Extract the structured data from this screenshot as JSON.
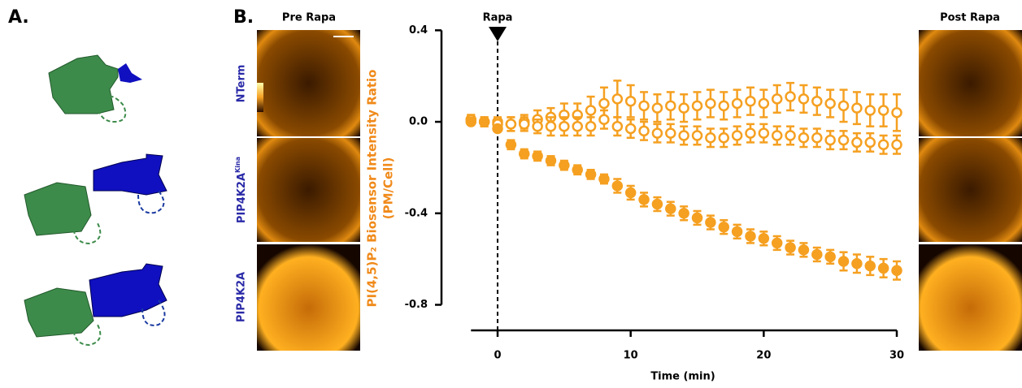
{
  "panels": {
    "a_label": "A.",
    "b_label": "B.",
    "pre_title": "Pre Rapa",
    "post_title": "Post Rapa",
    "rows": [
      {
        "label": "NTerm"
      },
      {
        "label": "PIP4K2A",
        "superscript": "Kina"
      },
      {
        "label": "PIP4K2A"
      }
    ]
  },
  "chart_data": {
    "type": "scatter",
    "x_label": "Time (min)",
    "y_label": [
      "PI(4,5)P₂ Biosensor Intensity Ratio",
      "(PM/Cell)"
    ],
    "annotation": {
      "text": "Rapa",
      "x": 0
    },
    "x": [
      -2,
      -1,
      0,
      1,
      2,
      3,
      4,
      5,
      6,
      7,
      8,
      9,
      10,
      11,
      12,
      13,
      14,
      15,
      16,
      17,
      18,
      19,
      20,
      21,
      22,
      23,
      24,
      25,
      26,
      27,
      28,
      29,
      30
    ],
    "xlim": [
      -2,
      30
    ],
    "xticks": [
      0,
      10,
      20,
      30
    ],
    "ylim": [
      -0.85,
      0.42
    ],
    "yticks": [
      0.4,
      {
        "value": 0,
        "label": "0.0"
      },
      -0.4,
      -0.8
    ],
    "series": [
      {
        "color": "#f5a021",
        "marker": "open",
        "values": [
          0.01,
          0.0,
          0.0,
          -0.01,
          0.0,
          0.01,
          0.02,
          0.03,
          0.03,
          0.05,
          0.08,
          0.1,
          0.09,
          0.07,
          0.06,
          0.07,
          0.06,
          0.07,
          0.08,
          0.07,
          0.08,
          0.09,
          0.08,
          0.1,
          0.11,
          0.1,
          0.09,
          0.08,
          0.07,
          0.06,
          0.05,
          0.05,
          0.04
        ],
        "errors": [
          0.02,
          0.02,
          0.02,
          0.03,
          0.03,
          0.04,
          0.04,
          0.05,
          0.05,
          0.06,
          0.07,
          0.08,
          0.07,
          0.06,
          0.06,
          0.06,
          0.06,
          0.06,
          0.06,
          0.06,
          0.06,
          0.06,
          0.06,
          0.06,
          0.06,
          0.06,
          0.06,
          0.06,
          0.07,
          0.07,
          0.07,
          0.07,
          0.08
        ]
      },
      {
        "color": "#f5a021",
        "marker": "open",
        "values": [
          0.01,
          0.0,
          -0.01,
          -0.01,
          -0.01,
          -0.02,
          -0.02,
          -0.02,
          -0.02,
          -0.02,
          0.01,
          -0.02,
          -0.03,
          -0.04,
          -0.05,
          -0.05,
          -0.06,
          -0.06,
          -0.07,
          -0.07,
          -0.06,
          -0.05,
          -0.05,
          -0.06,
          -0.06,
          -0.07,
          -0.07,
          -0.08,
          -0.08,
          -0.09,
          -0.09,
          -0.1,
          -0.1
        ],
        "errors": [
          0.02,
          0.02,
          0.02,
          0.03,
          0.03,
          0.03,
          0.04,
          0.04,
          0.04,
          0.04,
          0.04,
          0.04,
          0.04,
          0.04,
          0.04,
          0.04,
          0.04,
          0.04,
          0.04,
          0.04,
          0.04,
          0.04,
          0.04,
          0.04,
          0.04,
          0.04,
          0.04,
          0.04,
          0.04,
          0.04,
          0.04,
          0.04,
          0.04
        ]
      },
      {
        "color": "#f5a021",
        "marker": "filled",
        "values": [
          0.0,
          0.0,
          -0.03,
          -0.1,
          -0.14,
          -0.15,
          -0.17,
          -0.19,
          -0.21,
          -0.23,
          -0.25,
          -0.28,
          -0.31,
          -0.34,
          -0.36,
          -0.38,
          -0.4,
          -0.42,
          -0.44,
          -0.46,
          -0.48,
          -0.5,
          -0.51,
          -0.53,
          -0.55,
          -0.56,
          -0.58,
          -0.59,
          -0.61,
          -0.62,
          -0.63,
          -0.64,
          -0.65
        ],
        "errors": [
          0.01,
          0.01,
          0.01,
          0.02,
          0.02,
          0.02,
          0.02,
          0.02,
          0.02,
          0.02,
          0.02,
          0.03,
          0.03,
          0.03,
          0.03,
          0.03,
          0.03,
          0.03,
          0.03,
          0.03,
          0.03,
          0.03,
          0.03,
          0.03,
          0.03,
          0.03,
          0.03,
          0.03,
          0.04,
          0.04,
          0.04,
          0.04,
          0.04
        ]
      }
    ]
  }
}
